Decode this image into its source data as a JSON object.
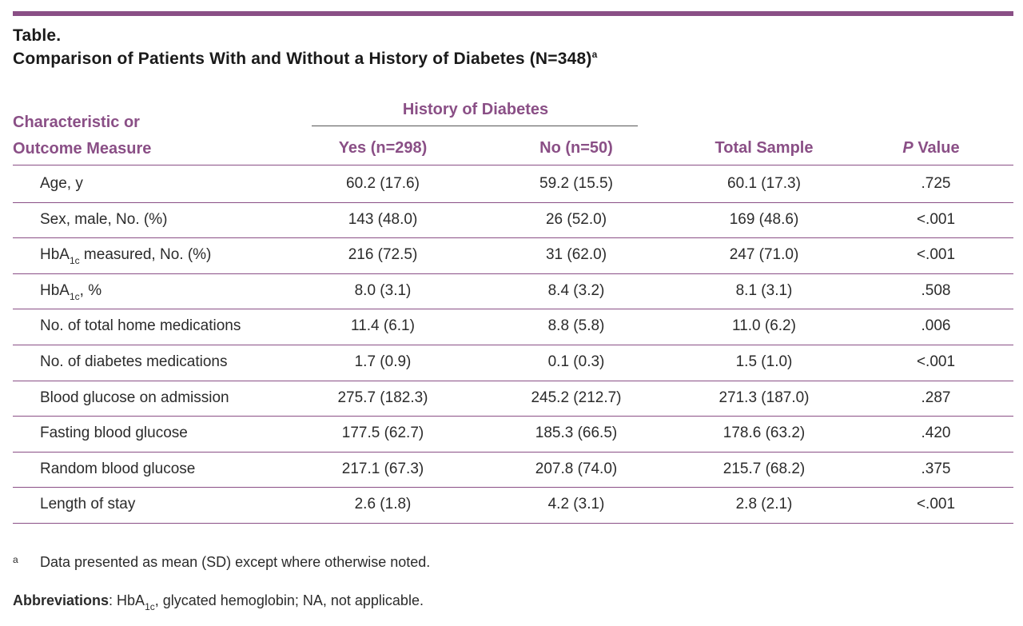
{
  "title": {
    "line1": "Table.",
    "line2": "Comparison of Patients With and Without a History of Diabetes (N=348)",
    "sup": "a"
  },
  "header": {
    "characteristic_line1": "Characteristic or",
    "characteristic_line2": "Outcome Measure",
    "group": "History of Diabetes",
    "yes": "Yes (n=298)",
    "no": "No (n=50)",
    "total": "Total Sample",
    "p_italic": "P",
    "p_rest": " Value"
  },
  "rows": [
    {
      "label": "Age, y",
      "yes": "60.2 (17.6)",
      "no": "59.2 (15.5)",
      "total": "60.1 (17.3)",
      "p": ".725"
    },
    {
      "label": "Sex, male, No. (%)",
      "yes": "143 (48.0)",
      "no": "26 (52.0)",
      "total": "169 (48.6)",
      "p": "<.001"
    },
    {
      "label_pre": "HbA",
      "label_sub": "1c",
      "label_post": " measured, No. (%)",
      "yes": "216 (72.5)",
      "no": "31 (62.0)",
      "total": "247 (71.0)",
      "p": "<.001"
    },
    {
      "label_pre": "HbA",
      "label_sub": "1c",
      "label_post": ", %",
      "yes": "8.0 (3.1)",
      "no": "8.4 (3.2)",
      "total": "8.1 (3.1)",
      "p": ".508"
    },
    {
      "label": "No. of total home medications",
      "yes": "11.4 (6.1)",
      "no": "8.8 (5.8)",
      "total": "11.0 (6.2)",
      "p": ".006"
    },
    {
      "label": "No. of diabetes medications",
      "yes": "1.7 (0.9)",
      "no": "0.1 (0.3)",
      "total": "1.5 (1.0)",
      "p": "<.001"
    },
    {
      "label": "Blood glucose on admission",
      "yes": "275.7 (182.3)",
      "no": "245.2 (212.7)",
      "total": "271.3 (187.0)",
      "p": ".287"
    },
    {
      "label": "Fasting blood glucose",
      "yes": "177.5 (62.7)",
      "no": "185.3 (66.5)",
      "total": "178.6 (63.2)",
      "p": ".420"
    },
    {
      "label": "Random blood glucose",
      "yes": "217.1 (67.3)",
      "no": "207.8 (74.0)",
      "total": "215.7 (68.2)",
      "p": ".375"
    },
    {
      "label": "Length of stay",
      "yes": "2.6 (1.8)",
      "no": "4.2 (3.1)",
      "total": "2.8 (2.1)",
      "p": "<.001"
    }
  ],
  "footnote": {
    "mark": "a",
    "text": "Data presented as mean (SD) except where otherwise noted."
  },
  "abbreviations": {
    "label": "Abbreviations",
    "colon": ": HbA",
    "sub": "1c",
    "rest": ", glycated hemoglobin; NA, not applicable."
  },
  "colors": {
    "accent": "#8a4f86",
    "text": "#2b2b2b"
  }
}
